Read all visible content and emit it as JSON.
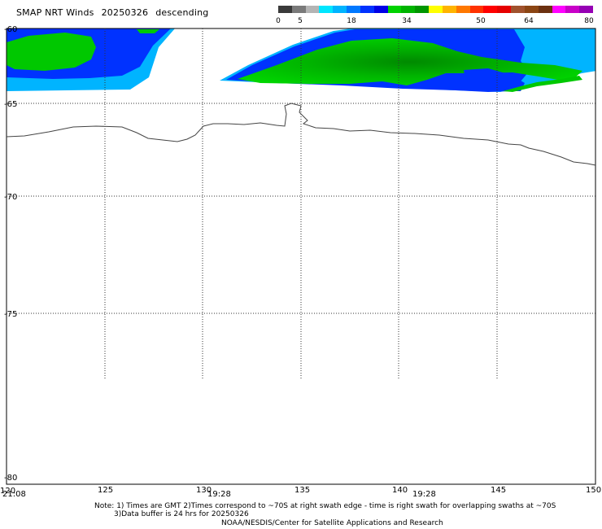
{
  "title": {
    "product": "SMAP NRT Winds",
    "date": "20250326",
    "pass": "descending"
  },
  "colorbar": {
    "ticks": [
      "0",
      "5",
      "18",
      "34",
      "50",
      "64",
      "80"
    ],
    "colors": [
      "#3a3a3a",
      "#7a7a7a",
      "#b4b4b4",
      "#00e6ff",
      "#00b4ff",
      "#0078ff",
      "#0032ff",
      "#0000e6",
      "#00d200",
      "#00b400",
      "#009600",
      "#ffff00",
      "#ffb400",
      "#ff7800",
      "#ff3200",
      "#ff0000",
      "#e60000",
      "#a0522d",
      "#8b4513",
      "#6b3010",
      "#ff00ff",
      "#c800c8",
      "#9600b4"
    ]
  },
  "axes": {
    "lat_labels": [
      "-60",
      "-65",
      "-70",
      "-75",
      "-80"
    ],
    "lon_labels": [
      "120",
      "125",
      "130",
      "135",
      "140",
      "145",
      "150"
    ],
    "time_labels": [
      "21:08",
      "19:28",
      "19:28"
    ]
  },
  "notes": {
    "line1": "Note: 1) Times are GMT 2)Times correspond to ~70S at right swath edge - time is right swath for overlapping swaths at ~70S",
    "line2": "3)Data buffer is 24 hrs for 20250326",
    "credit": "NOAA/NESDIS/Center for Satellite Applications and Research"
  }
}
